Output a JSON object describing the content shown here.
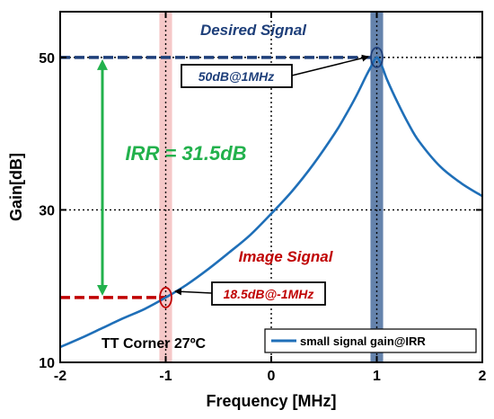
{
  "chart_data": {
    "type": "line",
    "xlabel": "Frequency [MHz]",
    "ylabel": "Gain[dB]",
    "xlim": [
      -2,
      2
    ],
    "ylim": [
      10,
      56
    ],
    "xticks": [
      -2,
      -1,
      0,
      1,
      2
    ],
    "xtick_labels": [
      "-2",
      "-1",
      "0",
      "1",
      "2"
    ],
    "yticks": [
      10,
      30,
      50
    ],
    "ytick_labels": [
      "10",
      "30",
      "50"
    ],
    "grid": "dotted at x=-1, 0, 1 and y=30, 50",
    "legend_position": "bottom-right",
    "series": [
      {
        "name": "small signal gain@IRR",
        "color": "#1f6fb8",
        "x": [
          -2.0,
          -1.8,
          -1.6,
          -1.4,
          -1.2,
          -1.0,
          -0.8,
          -0.6,
          -0.4,
          -0.2,
          0.0,
          0.2,
          0.4,
          0.6,
          0.7,
          0.8,
          0.9,
          0.95,
          1.0,
          1.05,
          1.1,
          1.2,
          1.3,
          1.4,
          1.6,
          1.8,
          2.0
        ],
        "y": [
          12.0,
          13.2,
          14.5,
          15.8,
          17.0,
          18.5,
          20.2,
          22.2,
          24.4,
          26.7,
          29.5,
          32.5,
          36.0,
          40.0,
          42.3,
          44.8,
          47.6,
          48.9,
          50.0,
          48.8,
          47.0,
          44.0,
          41.3,
          39.0,
          35.7,
          33.5,
          31.8
        ]
      }
    ],
    "highlight_bands": [
      {
        "x_center": -1,
        "half_width": 0.06,
        "color": "#f2b5b5"
      },
      {
        "x_center": 1,
        "half_width": 0.06,
        "color": "#4a6d9e"
      }
    ],
    "reference_lines": [
      {
        "x_from": -2,
        "x_to": 1,
        "y": 50,
        "color": "#1e3f7a"
      },
      {
        "x_from": -2,
        "x_to": -1,
        "y": 18.5,
        "color": "#c00000"
      }
    ],
    "irr_arrow": {
      "x": -1.6,
      "y_from": 18.5,
      "y_to": 50,
      "color": "#22b14c"
    },
    "markers": [
      {
        "x": 1,
        "y": 50
      },
      {
        "x": -1,
        "y": 18.5
      }
    ],
    "annotations": {
      "desired_signal": "Desired Signal",
      "image_signal": "Image Signal",
      "irr": "IRR = 31.5dB",
      "peak_box": "50dB@1MHz",
      "image_box": "18.5dB@-1MHz",
      "corner": "TT Corner 27ºC"
    },
    "colors": {
      "curve": "#1f6fb8",
      "desired": "#1e3f7a",
      "image": "#c00000",
      "irr": "#22b14c"
    }
  }
}
